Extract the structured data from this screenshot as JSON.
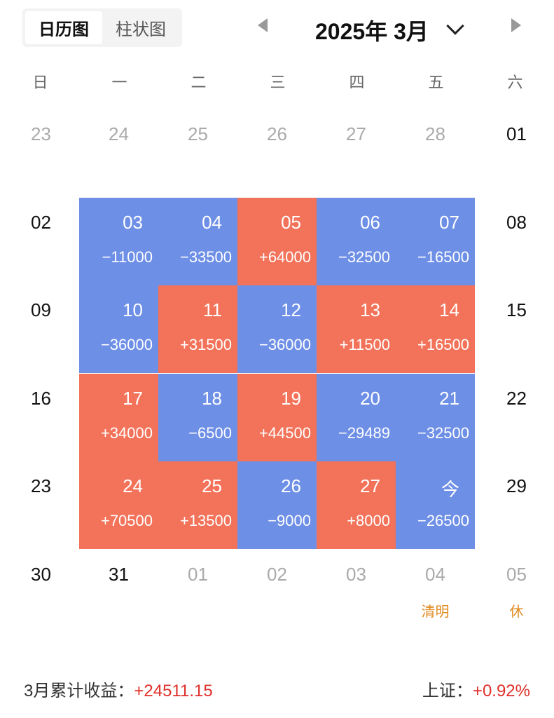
{
  "toggle": {
    "calendar_label": "日历图",
    "bar_label": "柱状图"
  },
  "header": {
    "title": "2025年 3月"
  },
  "weekdays": [
    "日",
    "一",
    "二",
    "三",
    "四",
    "五",
    "六"
  ],
  "weeks": [
    [
      {
        "day": "23",
        "type": "other"
      },
      {
        "day": "24",
        "type": "other"
      },
      {
        "day": "25",
        "type": "other"
      },
      {
        "day": "26",
        "type": "other"
      },
      {
        "day": "27",
        "type": "other"
      },
      {
        "day": "28",
        "type": "other"
      },
      {
        "day": "01",
        "type": "normal"
      }
    ],
    [
      {
        "day": "02",
        "type": "normal"
      },
      {
        "day": "03",
        "type": "down",
        "pnl": "−11000"
      },
      {
        "day": "04",
        "type": "down",
        "pnl": "−33500"
      },
      {
        "day": "05",
        "type": "up",
        "pnl": "+64000"
      },
      {
        "day": "06",
        "type": "down",
        "pnl": "−32500"
      },
      {
        "day": "07",
        "type": "down",
        "pnl": "−16500"
      },
      {
        "day": "08",
        "type": "normal"
      }
    ],
    [
      {
        "day": "09",
        "type": "normal"
      },
      {
        "day": "10",
        "type": "down",
        "pnl": "−36000"
      },
      {
        "day": "11",
        "type": "up",
        "pnl": "+31500"
      },
      {
        "day": "12",
        "type": "down",
        "pnl": "−36000"
      },
      {
        "day": "13",
        "type": "up",
        "pnl": "+11500"
      },
      {
        "day": "14",
        "type": "up",
        "pnl": "+16500"
      },
      {
        "day": "15",
        "type": "normal"
      }
    ],
    [
      {
        "day": "16",
        "type": "normal"
      },
      {
        "day": "17",
        "type": "up",
        "pnl": "+34000"
      },
      {
        "day": "18",
        "type": "down",
        "pnl": "−6500"
      },
      {
        "day": "19",
        "type": "up",
        "pnl": "+44500"
      },
      {
        "day": "20",
        "type": "down",
        "pnl": "−29489"
      },
      {
        "day": "21",
        "type": "down",
        "pnl": "−32500"
      },
      {
        "day": "22",
        "type": "normal"
      }
    ],
    [
      {
        "day": "23",
        "type": "normal"
      },
      {
        "day": "24",
        "type": "up",
        "pnl": "+70500"
      },
      {
        "day": "25",
        "type": "up",
        "pnl": "+13500"
      },
      {
        "day": "26",
        "type": "down",
        "pnl": "−9000"
      },
      {
        "day": "27",
        "type": "up",
        "pnl": "+8000"
      },
      {
        "day": "今",
        "type": "down",
        "pnl": "−26500"
      },
      {
        "day": "29",
        "type": "normal"
      }
    ],
    [
      {
        "day": "30",
        "type": "normal"
      },
      {
        "day": "31",
        "type": "normal"
      },
      {
        "day": "01",
        "type": "other"
      },
      {
        "day": "02",
        "type": "other"
      },
      {
        "day": "03",
        "type": "other"
      },
      {
        "day": "04",
        "type": "other",
        "holiday": "清明"
      },
      {
        "day": "05",
        "type": "other",
        "holiday": "休"
      }
    ]
  ],
  "footer": {
    "monthly_label": "3月累计收益：",
    "monthly_value": "+24511.15",
    "index_label": "上证：",
    "index_value": "+0.92%"
  },
  "colors": {
    "up": "#f2735a",
    "down": "#6e8fe6",
    "holiday": "#e08a1e",
    "positive_text": "#e0302a"
  }
}
